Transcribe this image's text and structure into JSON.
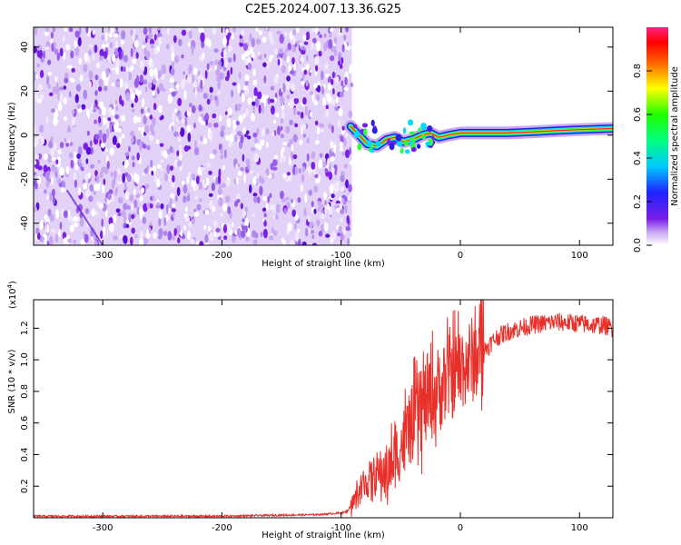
{
  "title": "C2E5.2024.007.13.36.G25",
  "colors": {
    "snr_line": "#e8302a",
    "noise": "#7a1fe6",
    "signal_core": "#ff2020",
    "axis": "#000000"
  },
  "chart_data": [
    {
      "type": "heatmap",
      "title": "C2E5.2024.007.13.36.G25",
      "xlabel": "Height of straight line (km)",
      "ylabel": "Frequency (Hz)",
      "xlim": [
        -358,
        128
      ],
      "ylim": [
        -50,
        49
      ],
      "xticks": [
        -300,
        -200,
        -100,
        0,
        100
      ],
      "xtick_labels": [
        "-300",
        "-200",
        "-100",
        "0",
        "100"
      ],
      "yticks": [
        -40,
        -20,
        0,
        20,
        40
      ],
      "ytick_labels": [
        "-40",
        "-20",
        "0",
        "20",
        "40"
      ],
      "noise_region_x": [
        -358,
        -91
      ],
      "signal_track": {
        "x": [
          -92,
          -85,
          -78,
          -70,
          -62,
          -55,
          -48,
          -40,
          -32,
          -25,
          -18,
          -10,
          0,
          20,
          40,
          60,
          80,
          100,
          128
        ],
        "freq": [
          4,
          0,
          -4,
          -5,
          -2,
          -1,
          -3,
          -2,
          0,
          1,
          -1,
          0,
          1,
          1,
          1,
          1.5,
          2,
          2.5,
          3
        ]
      },
      "colorbar": {
        "label": "Normalized spectral amplitude",
        "range": [
          0,
          1
        ],
        "ticks": [
          0.0,
          0.2,
          0.4,
          0.6,
          0.8
        ],
        "tick_labels": [
          "0.0",
          "0.2",
          "0.4",
          "0.6",
          "0.8"
        ]
      }
    },
    {
      "type": "line",
      "xlabel": "Height of straight line (km)",
      "ylabel": "SNR (10 * v/v)",
      "scale_label": "(x10",
      "scale_exp": "4",
      "scale_close": ")",
      "xlim": [
        -358,
        128
      ],
      "ylim": [
        0,
        1.38
      ],
      "xticks": [
        -300,
        -200,
        -100,
        0,
        100
      ],
      "xtick_labels": [
        "-300",
        "-200",
        "-100",
        "0",
        "100"
      ],
      "yticks": [
        0.2,
        0.4,
        0.6,
        0.8,
        1.0,
        1.2
      ],
      "ytick_labels": [
        "0.2",
        "0.4",
        "0.6",
        "0.8",
        "1.0",
        "1.2"
      ],
      "series": [
        {
          "name": "SNR",
          "x": [
            -358,
            -300,
            -200,
            -120,
            -100,
            -95,
            -88,
            -80,
            -70,
            -60,
            -50,
            -40,
            -30,
            -20,
            -10,
            0,
            10,
            20,
            30,
            40,
            50,
            60,
            80,
            100,
            110,
            120,
            128
          ],
          "y": [
            0.01,
            0.01,
            0.01,
            0.02,
            0.03,
            0.04,
            0.12,
            0.22,
            0.28,
            0.3,
            0.45,
            0.6,
            0.72,
            0.8,
            0.88,
            0.95,
            1.0,
            1.06,
            1.14,
            1.18,
            1.2,
            1.22,
            1.24,
            1.23,
            1.22,
            1.22,
            1.2
          ]
        }
      ]
    }
  ]
}
